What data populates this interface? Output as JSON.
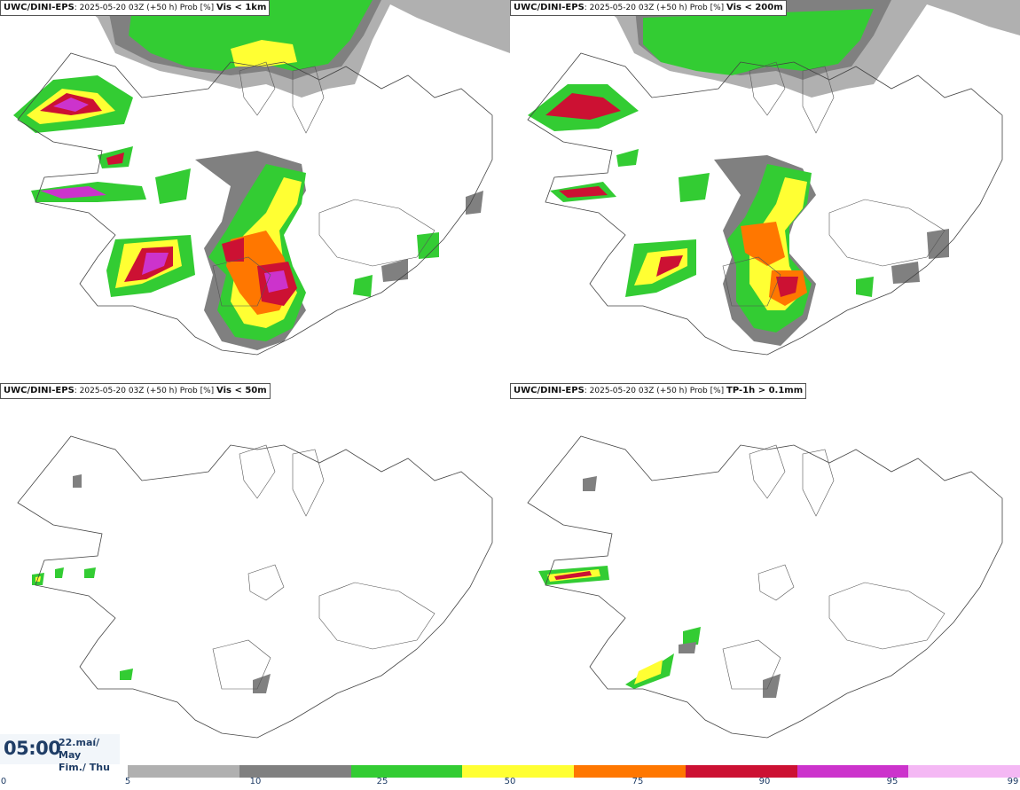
{
  "panels": [
    {
      "model": "UWC/DINI-EPS",
      "run": ": 2025-05-20 03Z (+50 h) Prob [%]",
      "variable": "Vis < 1km"
    },
    {
      "model": "UWC/DINI-EPS",
      "run": ": 2025-05-20 03Z (+50 h) Prob [%]",
      "variable": "Vis < 200m"
    },
    {
      "model": "UWC/DINI-EPS",
      "run": ": 2025-05-20 03Z (+50 h) Prob [%]",
      "variable": "Vis < 50m"
    },
    {
      "model": "UWC/DINI-EPS",
      "run": ": 2025-05-20 03Z (+50 h) Prob [%]",
      "variable": "TP-1h > 0.1mm"
    }
  ],
  "time": {
    "clock": "05:00",
    "date_line1": "22.maí/ May",
    "date_line2": "Fim./ Thu"
  },
  "colorbar": {
    "ticks": [
      "0",
      "5",
      "10",
      "25",
      "50",
      "75",
      "90",
      "95",
      "99"
    ],
    "colors": [
      "#b0b0b0",
      "#808080",
      "#33cc33",
      "#ffff33",
      "#ff7700",
      "#cc1133",
      "#cc33cc",
      "#f4b8f4"
    ]
  }
}
